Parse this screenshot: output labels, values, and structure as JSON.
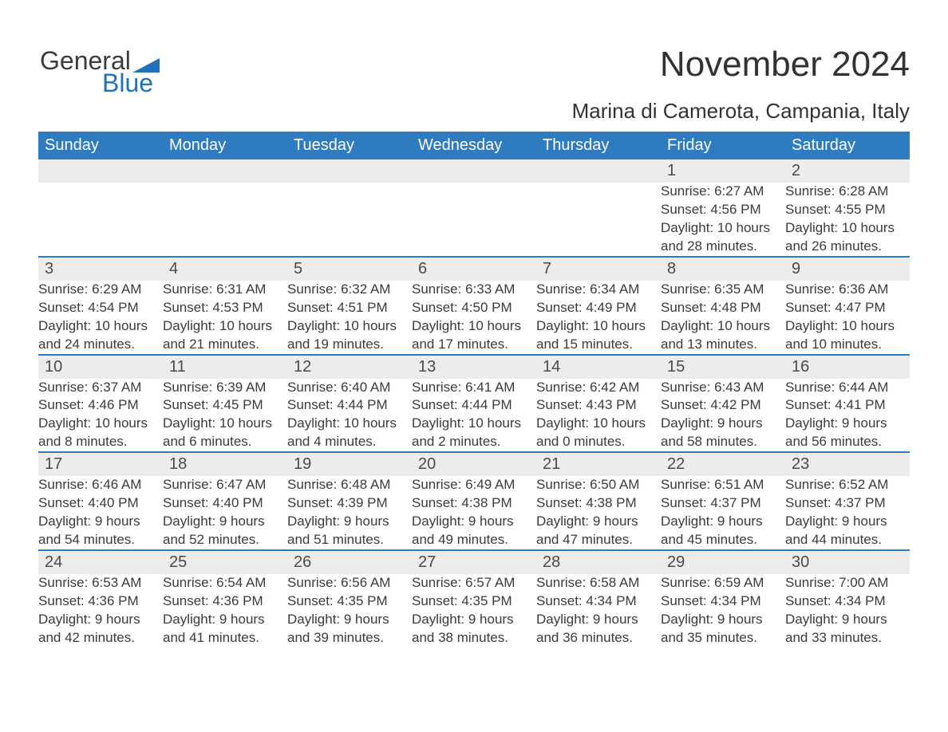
{
  "logo": {
    "word1": "General",
    "word2": "Blue",
    "triangle_color": "#1f72b8"
  },
  "title": "November 2024",
  "subtitle": "Marina di Camerota, Campania, Italy",
  "colors": {
    "header_bg": "#2f7bbf",
    "header_text": "#ffffff",
    "daynum_bg": "#ececec",
    "week_sep": "#2f7bbf",
    "body_text": "#3b3b3b",
    "page_bg": "#ffffff"
  },
  "typography": {
    "title_fontsize": 44,
    "subtitle_fontsize": 26,
    "header_fontsize": 20,
    "daynum_fontsize": 20,
    "body_fontsize": 17
  },
  "weekdays": [
    "Sunday",
    "Monday",
    "Tuesday",
    "Wednesday",
    "Thursday",
    "Friday",
    "Saturday"
  ],
  "weeks": [
    [
      null,
      null,
      null,
      null,
      null,
      {
        "n": "1",
        "sunrise": "Sunrise: 6:27 AM",
        "sunset": "Sunset: 4:56 PM",
        "day1": "Daylight: 10 hours",
        "day2": "and 28 minutes."
      },
      {
        "n": "2",
        "sunrise": "Sunrise: 6:28 AM",
        "sunset": "Sunset: 4:55 PM",
        "day1": "Daylight: 10 hours",
        "day2": "and 26 minutes."
      }
    ],
    [
      {
        "n": "3",
        "sunrise": "Sunrise: 6:29 AM",
        "sunset": "Sunset: 4:54 PM",
        "day1": "Daylight: 10 hours",
        "day2": "and 24 minutes."
      },
      {
        "n": "4",
        "sunrise": "Sunrise: 6:31 AM",
        "sunset": "Sunset: 4:53 PM",
        "day1": "Daylight: 10 hours",
        "day2": "and 21 minutes."
      },
      {
        "n": "5",
        "sunrise": "Sunrise: 6:32 AM",
        "sunset": "Sunset: 4:51 PM",
        "day1": "Daylight: 10 hours",
        "day2": "and 19 minutes."
      },
      {
        "n": "6",
        "sunrise": "Sunrise: 6:33 AM",
        "sunset": "Sunset: 4:50 PM",
        "day1": "Daylight: 10 hours",
        "day2": "and 17 minutes."
      },
      {
        "n": "7",
        "sunrise": "Sunrise: 6:34 AM",
        "sunset": "Sunset: 4:49 PM",
        "day1": "Daylight: 10 hours",
        "day2": "and 15 minutes."
      },
      {
        "n": "8",
        "sunrise": "Sunrise: 6:35 AM",
        "sunset": "Sunset: 4:48 PM",
        "day1": "Daylight: 10 hours",
        "day2": "and 13 minutes."
      },
      {
        "n": "9",
        "sunrise": "Sunrise: 6:36 AM",
        "sunset": "Sunset: 4:47 PM",
        "day1": "Daylight: 10 hours",
        "day2": "and 10 minutes."
      }
    ],
    [
      {
        "n": "10",
        "sunrise": "Sunrise: 6:37 AM",
        "sunset": "Sunset: 4:46 PM",
        "day1": "Daylight: 10 hours",
        "day2": "and 8 minutes."
      },
      {
        "n": "11",
        "sunrise": "Sunrise: 6:39 AM",
        "sunset": "Sunset: 4:45 PM",
        "day1": "Daylight: 10 hours",
        "day2": "and 6 minutes."
      },
      {
        "n": "12",
        "sunrise": "Sunrise: 6:40 AM",
        "sunset": "Sunset: 4:44 PM",
        "day1": "Daylight: 10 hours",
        "day2": "and 4 minutes."
      },
      {
        "n": "13",
        "sunrise": "Sunrise: 6:41 AM",
        "sunset": "Sunset: 4:44 PM",
        "day1": "Daylight: 10 hours",
        "day2": "and 2 minutes."
      },
      {
        "n": "14",
        "sunrise": "Sunrise: 6:42 AM",
        "sunset": "Sunset: 4:43 PM",
        "day1": "Daylight: 10 hours",
        "day2": "and 0 minutes."
      },
      {
        "n": "15",
        "sunrise": "Sunrise: 6:43 AM",
        "sunset": "Sunset: 4:42 PM",
        "day1": "Daylight: 9 hours",
        "day2": "and 58 minutes."
      },
      {
        "n": "16",
        "sunrise": "Sunrise: 6:44 AM",
        "sunset": "Sunset: 4:41 PM",
        "day1": "Daylight: 9 hours",
        "day2": "and 56 minutes."
      }
    ],
    [
      {
        "n": "17",
        "sunrise": "Sunrise: 6:46 AM",
        "sunset": "Sunset: 4:40 PM",
        "day1": "Daylight: 9 hours",
        "day2": "and 54 minutes."
      },
      {
        "n": "18",
        "sunrise": "Sunrise: 6:47 AM",
        "sunset": "Sunset: 4:40 PM",
        "day1": "Daylight: 9 hours",
        "day2": "and 52 minutes."
      },
      {
        "n": "19",
        "sunrise": "Sunrise: 6:48 AM",
        "sunset": "Sunset: 4:39 PM",
        "day1": "Daylight: 9 hours",
        "day2": "and 51 minutes."
      },
      {
        "n": "20",
        "sunrise": "Sunrise: 6:49 AM",
        "sunset": "Sunset: 4:38 PM",
        "day1": "Daylight: 9 hours",
        "day2": "and 49 minutes."
      },
      {
        "n": "21",
        "sunrise": "Sunrise: 6:50 AM",
        "sunset": "Sunset: 4:38 PM",
        "day1": "Daylight: 9 hours",
        "day2": "and 47 minutes."
      },
      {
        "n": "22",
        "sunrise": "Sunrise: 6:51 AM",
        "sunset": "Sunset: 4:37 PM",
        "day1": "Daylight: 9 hours",
        "day2": "and 45 minutes."
      },
      {
        "n": "23",
        "sunrise": "Sunrise: 6:52 AM",
        "sunset": "Sunset: 4:37 PM",
        "day1": "Daylight: 9 hours",
        "day2": "and 44 minutes."
      }
    ],
    [
      {
        "n": "24",
        "sunrise": "Sunrise: 6:53 AM",
        "sunset": "Sunset: 4:36 PM",
        "day1": "Daylight: 9 hours",
        "day2": "and 42 minutes."
      },
      {
        "n": "25",
        "sunrise": "Sunrise: 6:54 AM",
        "sunset": "Sunset: 4:36 PM",
        "day1": "Daylight: 9 hours",
        "day2": "and 41 minutes."
      },
      {
        "n": "26",
        "sunrise": "Sunrise: 6:56 AM",
        "sunset": "Sunset: 4:35 PM",
        "day1": "Daylight: 9 hours",
        "day2": "and 39 minutes."
      },
      {
        "n": "27",
        "sunrise": "Sunrise: 6:57 AM",
        "sunset": "Sunset: 4:35 PM",
        "day1": "Daylight: 9 hours",
        "day2": "and 38 minutes."
      },
      {
        "n": "28",
        "sunrise": "Sunrise: 6:58 AM",
        "sunset": "Sunset: 4:34 PM",
        "day1": "Daylight: 9 hours",
        "day2": "and 36 minutes."
      },
      {
        "n": "29",
        "sunrise": "Sunrise: 6:59 AM",
        "sunset": "Sunset: 4:34 PM",
        "day1": "Daylight: 9 hours",
        "day2": "and 35 minutes."
      },
      {
        "n": "30",
        "sunrise": "Sunrise: 7:00 AM",
        "sunset": "Sunset: 4:34 PM",
        "day1": "Daylight: 9 hours",
        "day2": "and 33 minutes."
      }
    ]
  ]
}
